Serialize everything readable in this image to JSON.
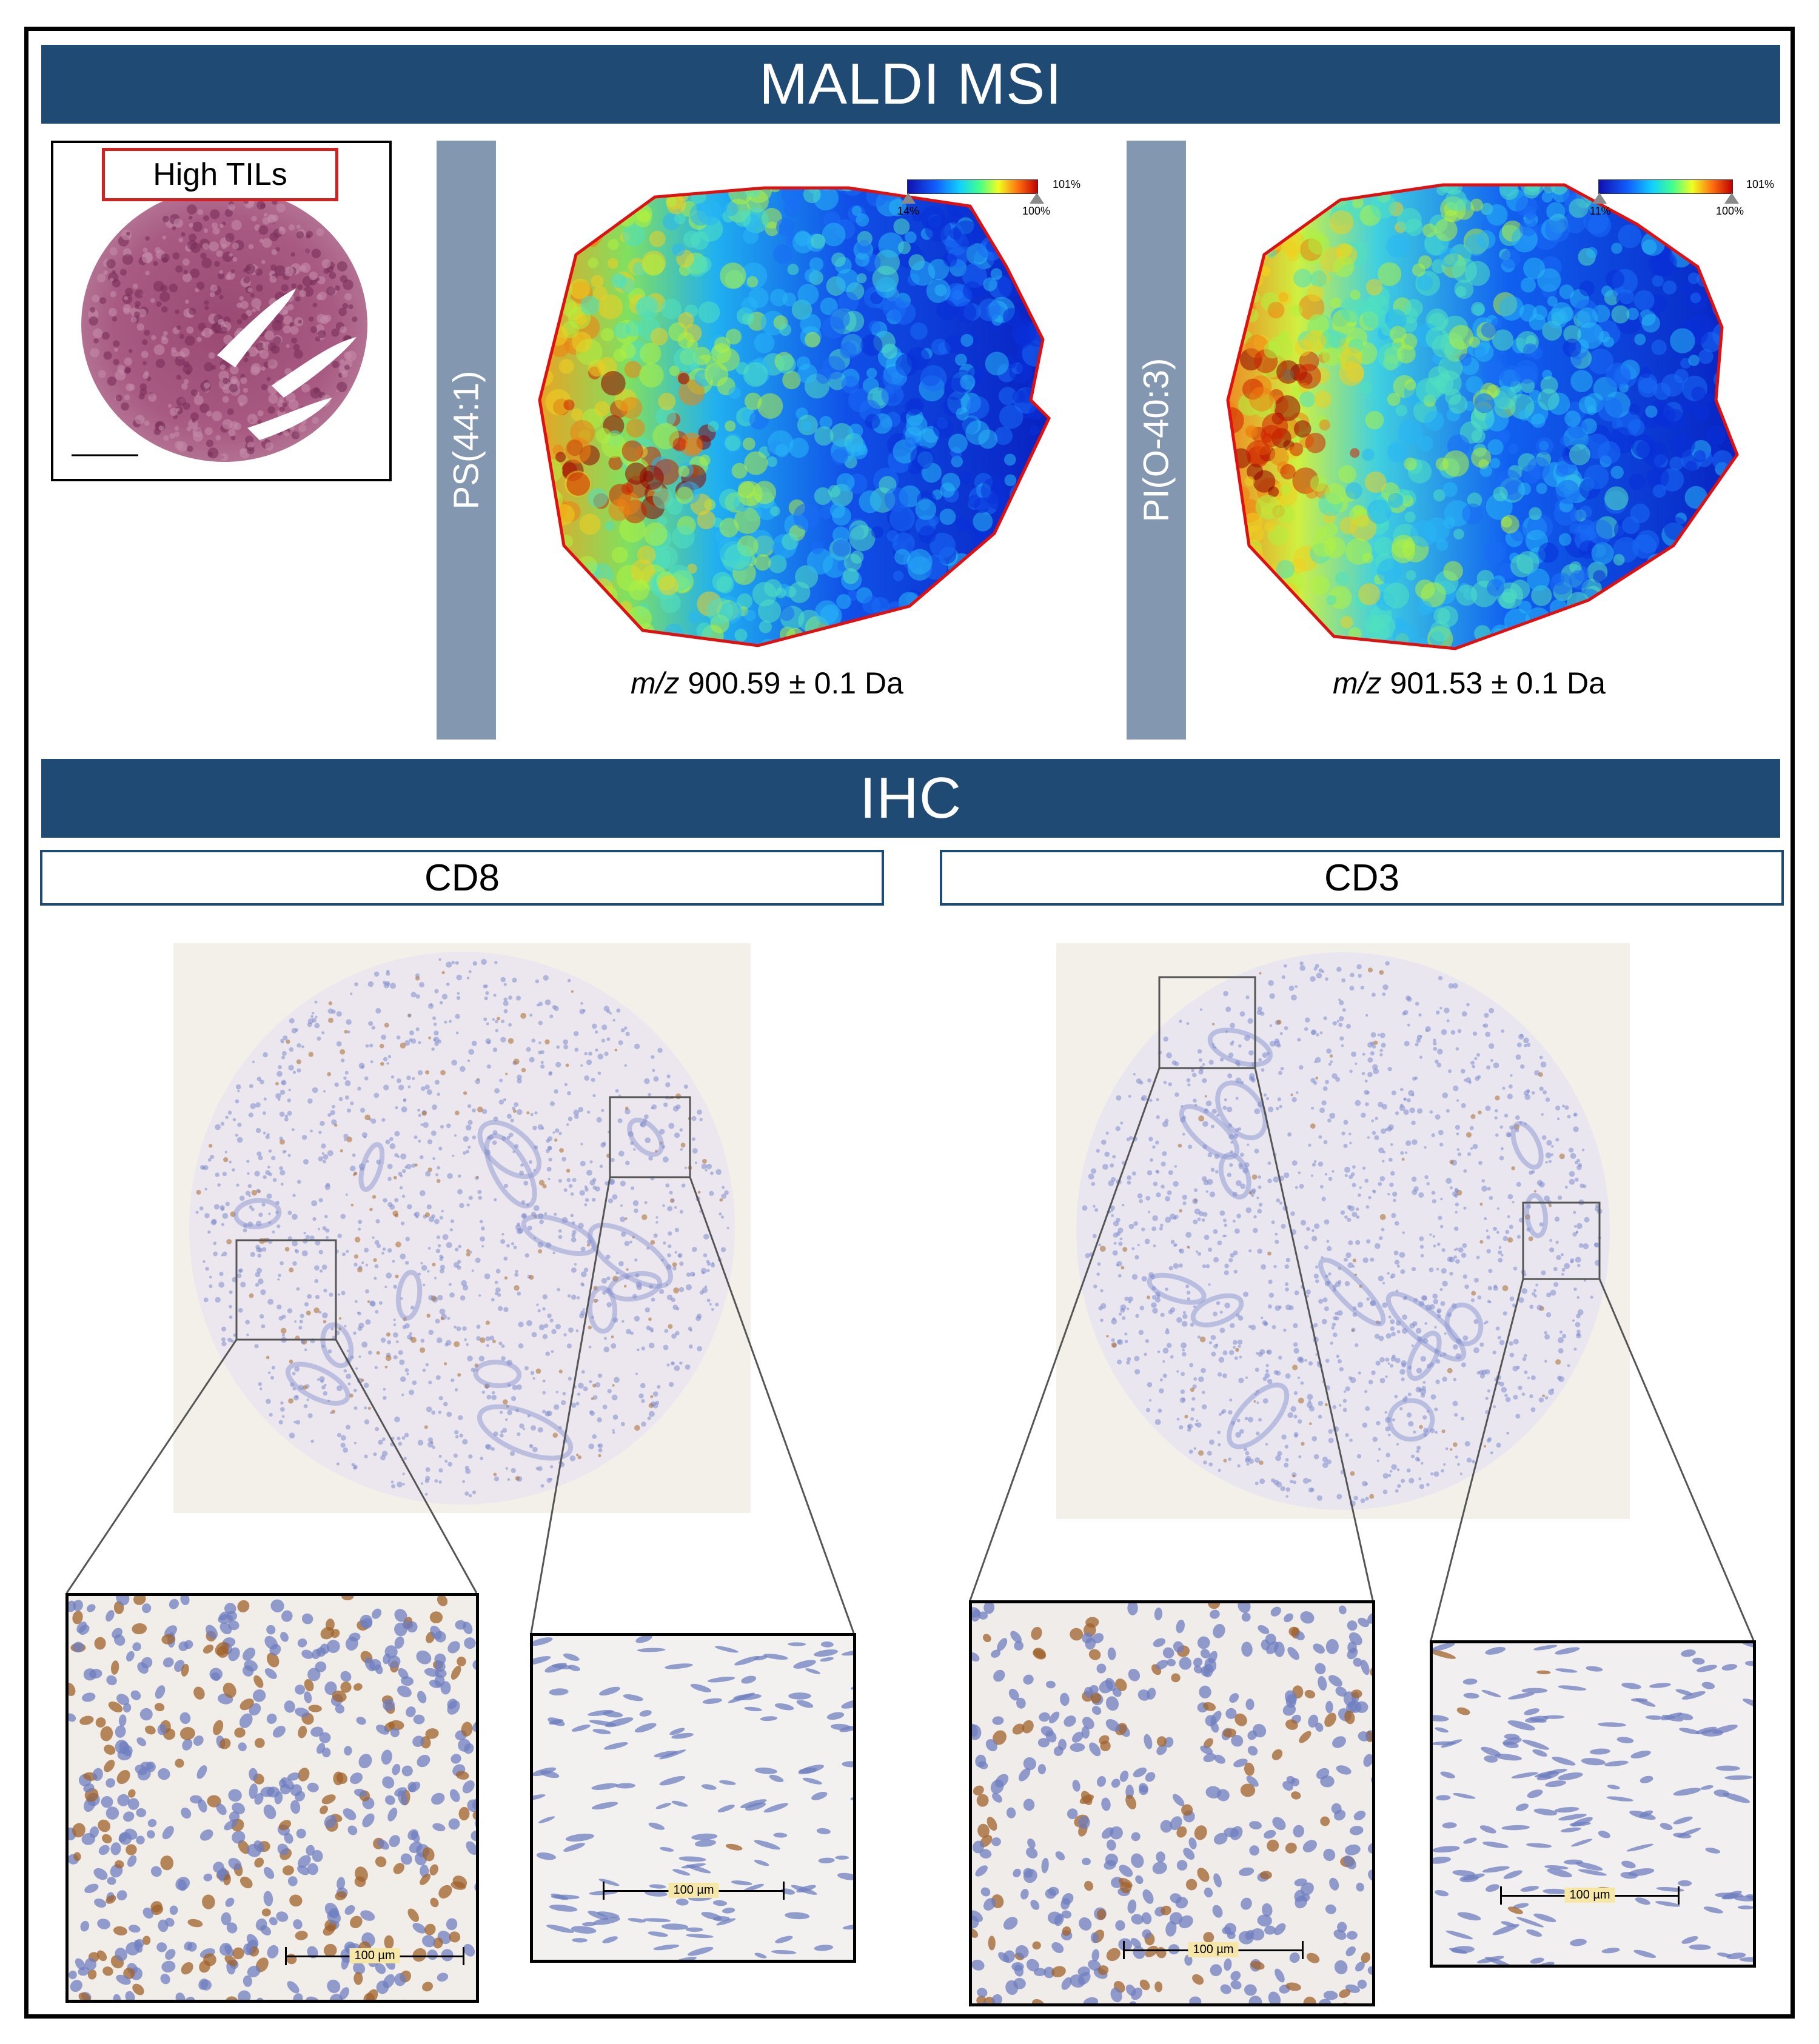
{
  "maldi": {
    "banner": "MALDI MSI",
    "he_label": "High TILs",
    "panels": [
      {
        "lipid": "PS(44:1)",
        "mz_italic": "m/z",
        "mz_value": " 900.59 ± 0.1 Da",
        "scale_max": "101%",
        "scale_low": "14%",
        "scale_high": "100%"
      },
      {
        "lipid": "PI(O-40:3)",
        "mz_italic": "m/z",
        "mz_value": " 901.53 ± 0.1 Da",
        "scale_max": "101%",
        "scale_low": "11%",
        "scale_high": "100%"
      }
    ]
  },
  "ihc": {
    "banner": "IHC",
    "markers": [
      {
        "name": "CD8",
        "scalebars": [
          "100 µm",
          "100 µm"
        ]
      },
      {
        "name": "CD3",
        "scalebars": [
          "100 µm",
          "100 µm"
        ]
      }
    ]
  },
  "colors": {
    "banner": "#1f4a74",
    "vertical_bar": "#8497b0",
    "highlight_border": "#d42020",
    "dab_brown": "#a86a2a",
    "hematoxylin_blue": "#6f7fc0"
  }
}
